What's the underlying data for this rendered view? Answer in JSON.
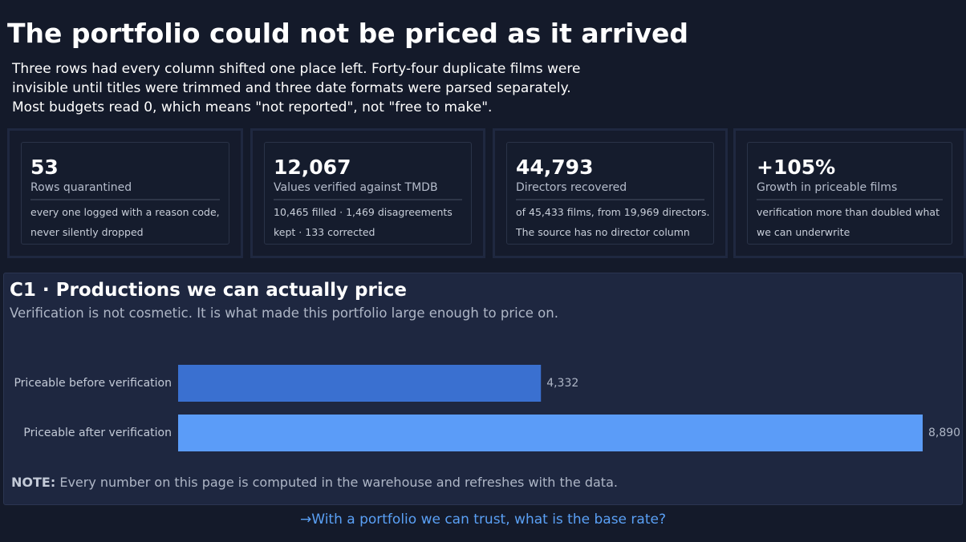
{
  "header": {
    "title": "The portfolio could not be priced as it arrived",
    "subtitle": [
      "Three rows had every column shifted one place left. Forty-four duplicate films were",
      "invisible until titles were trimmed and three date formats were parsed separately.",
      "Most budgets read 0, which means \"not reported\", not \"free to make\"."
    ]
  },
  "kpis": [
    {
      "value": "53",
      "label": "Rows quarantined",
      "detail": [
        "every one logged with a reason code,",
        "never silently dropped"
      ]
    },
    {
      "value": "12,067",
      "label": "Values verified against TMDB",
      "detail": [
        "10,465 filled · 1,469 disagreements",
        "kept · 133 corrected"
      ]
    },
    {
      "value": "44,793",
      "label": "Directors recovered",
      "detail": [
        "of 45,433 films, from 19,969 directors.",
        "The source has no director column"
      ]
    },
    {
      "value": "+105%",
      "label": "Growth in priceable films",
      "detail": [
        "verification more than doubled what",
        "we can underwrite"
      ]
    }
  ],
  "chart_data": {
    "type": "bar",
    "orientation": "horizontal",
    "title": "C1 · Productions we can actually price",
    "subtitle": "Verification is not cosmetic. It is what made this portfolio large enough to price on.",
    "categories": [
      "Priceable before verification",
      "Priceable after verification"
    ],
    "values": [
      4332,
      8890
    ],
    "value_labels": [
      "4,332",
      "8,890"
    ],
    "colors": [
      "#3a70d0",
      "#5b9cf8"
    ],
    "note": {
      "label": "NOTE:",
      "text": "Every number on this page is computed in the warehouse and refreshes with the data."
    }
  },
  "footer": {
    "link": "→With a portfolio we can trust, what is the base rate?"
  }
}
